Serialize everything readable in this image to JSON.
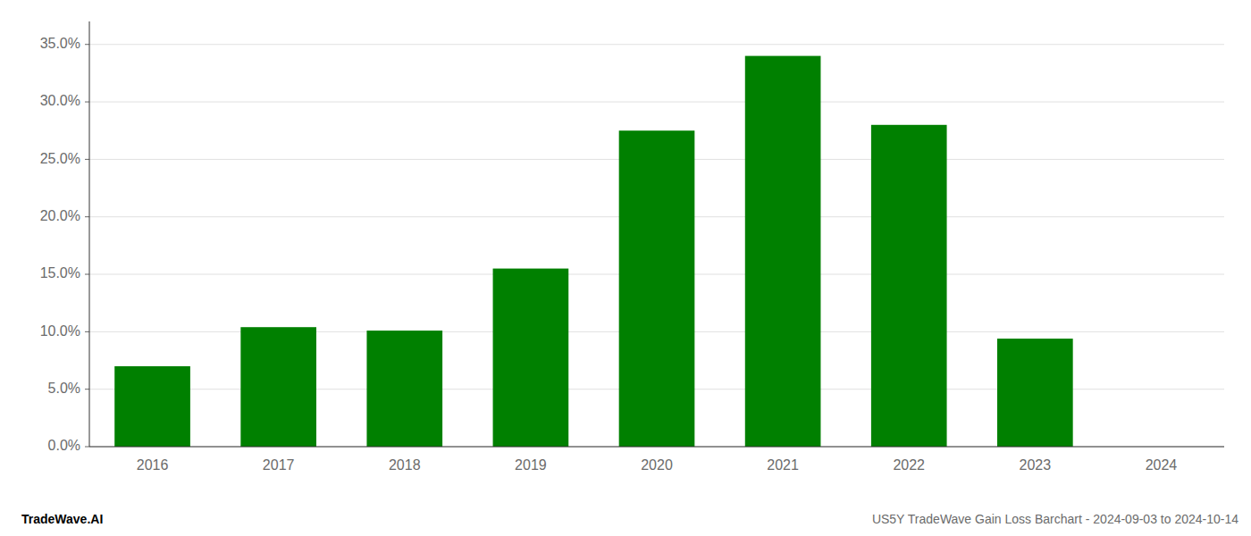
{
  "chart_data": {
    "type": "bar",
    "categories": [
      "2016",
      "2017",
      "2018",
      "2019",
      "2020",
      "2021",
      "2022",
      "2023",
      "2024"
    ],
    "values": [
      0.07,
      0.104,
      0.101,
      0.155,
      0.275,
      0.34,
      0.28,
      0.094,
      0.0
    ],
    "color": "#008000",
    "ylim": [
      0,
      0.37
    ],
    "yticks": [
      {
        "value": 0.0,
        "label": "0.0%"
      },
      {
        "value": 0.05,
        "label": "5.0%"
      },
      {
        "value": 0.1,
        "label": "10.0%"
      },
      {
        "value": 0.15,
        "label": "15.0%"
      },
      {
        "value": 0.2,
        "label": "20.0%"
      },
      {
        "value": 0.25,
        "label": "25.0%"
      },
      {
        "value": 0.3,
        "label": "30.0%"
      },
      {
        "value": 0.35,
        "label": "35.0%"
      }
    ],
    "grid": true,
    "annotations": [
      "TradeWave.AI",
      "US5Y TradeWave Gain Loss Barchart - 2024-09-03 to 2024-10-14"
    ]
  }
}
